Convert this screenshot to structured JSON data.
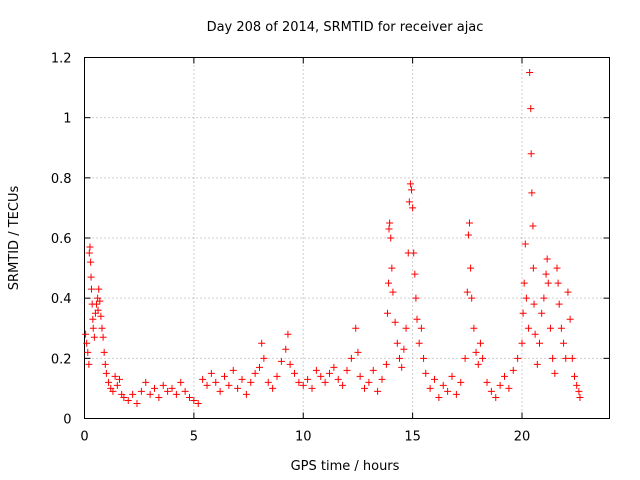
{
  "chart_data": {
    "type": "scatter",
    "title": "Day 208 of 2014, SRMTID for receiver ajac",
    "xlabel": "GPS time / hours",
    "ylabel": "SRMTID / TECUs",
    "xlim": [
      0,
      24
    ],
    "ylim": [
      0,
      1.2
    ],
    "xticks": [
      0,
      5,
      10,
      15,
      20
    ],
    "yticks": [
      0,
      0.2,
      0.4,
      0.6,
      0.8,
      1,
      1.2
    ],
    "xtick_labels": [
      "0",
      "5",
      "10",
      "15",
      "20"
    ],
    "ytick_labels": [
      "0",
      "0.2",
      "0.4",
      "0.6",
      "0.8",
      "1",
      "1.2"
    ],
    "grid": true,
    "marker": "+",
    "series": [
      {
        "name": "SRMTID",
        "color": "#ff0000",
        "points": [
          [
            0.05,
            0.28
          ],
          [
            0.1,
            0.25
          ],
          [
            0.15,
            0.22
          ],
          [
            0.2,
            0.18
          ],
          [
            0.22,
            0.55
          ],
          [
            0.25,
            0.57
          ],
          [
            0.28,
            0.52
          ],
          [
            0.3,
            0.47
          ],
          [
            0.32,
            0.43
          ],
          [
            0.35,
            0.38
          ],
          [
            0.38,
            0.33
          ],
          [
            0.4,
            0.3
          ],
          [
            0.45,
            0.27
          ],
          [
            0.5,
            0.35
          ],
          [
            0.55,
            0.38
          ],
          [
            0.6,
            0.4
          ],
          [
            0.62,
            0.36
          ],
          [
            0.65,
            0.43
          ],
          [
            0.7,
            0.39
          ],
          [
            0.75,
            0.34
          ],
          [
            0.8,
            0.3
          ],
          [
            0.85,
            0.27
          ],
          [
            0.9,
            0.22
          ],
          [
            0.95,
            0.18
          ],
          [
            1.0,
            0.15
          ],
          [
            1.1,
            0.12
          ],
          [
            1.2,
            0.1
          ],
          [
            1.3,
            0.09
          ],
          [
            1.4,
            0.14
          ],
          [
            1.5,
            0.11
          ],
          [
            1.6,
            0.13
          ],
          [
            1.7,
            0.08
          ],
          [
            1.8,
            0.07
          ],
          [
            2.0,
            0.06
          ],
          [
            2.2,
            0.08
          ],
          [
            2.4,
            0.05
          ],
          [
            2.6,
            0.09
          ],
          [
            2.8,
            0.12
          ],
          [
            3.0,
            0.08
          ],
          [
            3.2,
            0.1
          ],
          [
            3.4,
            0.07
          ],
          [
            3.6,
            0.11
          ],
          [
            3.8,
            0.09
          ],
          [
            4.0,
            0.1
          ],
          [
            4.2,
            0.08
          ],
          [
            4.4,
            0.12
          ],
          [
            4.6,
            0.09
          ],
          [
            4.8,
            0.07
          ],
          [
            5.0,
            0.06
          ],
          [
            5.2,
            0.05
          ],
          [
            5.4,
            0.13
          ],
          [
            5.6,
            0.11
          ],
          [
            5.8,
            0.15
          ],
          [
            6.0,
            0.12
          ],
          [
            6.2,
            0.09
          ],
          [
            6.4,
            0.14
          ],
          [
            6.6,
            0.11
          ],
          [
            6.8,
            0.16
          ],
          [
            7.0,
            0.1
          ],
          [
            7.2,
            0.13
          ],
          [
            7.4,
            0.08
          ],
          [
            7.6,
            0.12
          ],
          [
            7.8,
            0.15
          ],
          [
            8.0,
            0.17
          ],
          [
            8.1,
            0.25
          ],
          [
            8.2,
            0.2
          ],
          [
            8.4,
            0.12
          ],
          [
            8.6,
            0.1
          ],
          [
            8.8,
            0.14
          ],
          [
            9.0,
            0.19
          ],
          [
            9.2,
            0.23
          ],
          [
            9.3,
            0.28
          ],
          [
            9.4,
            0.18
          ],
          [
            9.6,
            0.15
          ],
          [
            9.8,
            0.12
          ],
          [
            10.0,
            0.11
          ],
          [
            10.2,
            0.13
          ],
          [
            10.4,
            0.1
          ],
          [
            10.6,
            0.16
          ],
          [
            10.8,
            0.14
          ],
          [
            11.0,
            0.12
          ],
          [
            11.2,
            0.15
          ],
          [
            11.4,
            0.17
          ],
          [
            11.6,
            0.13
          ],
          [
            11.8,
            0.11
          ],
          [
            12.0,
            0.16
          ],
          [
            12.2,
            0.2
          ],
          [
            12.4,
            0.3
          ],
          [
            12.5,
            0.22
          ],
          [
            12.6,
            0.14
          ],
          [
            12.8,
            0.1
          ],
          [
            13.0,
            0.12
          ],
          [
            13.2,
            0.16
          ],
          [
            13.4,
            0.09
          ],
          [
            13.6,
            0.13
          ],
          [
            13.8,
            0.18
          ],
          [
            13.85,
            0.35
          ],
          [
            13.9,
            0.45
          ],
          [
            13.92,
            0.63
          ],
          [
            13.95,
            0.65
          ],
          [
            14.0,
            0.6
          ],
          [
            14.05,
            0.5
          ],
          [
            14.1,
            0.42
          ],
          [
            14.2,
            0.32
          ],
          [
            14.3,
            0.25
          ],
          [
            14.4,
            0.2
          ],
          [
            14.5,
            0.17
          ],
          [
            14.6,
            0.23
          ],
          [
            14.7,
            0.3
          ],
          [
            14.8,
            0.55
          ],
          [
            14.85,
            0.72
          ],
          [
            14.9,
            0.78
          ],
          [
            14.95,
            0.76
          ],
          [
            15.0,
            0.7
          ],
          [
            15.05,
            0.55
          ],
          [
            15.1,
            0.48
          ],
          [
            15.15,
            0.4
          ],
          [
            15.2,
            0.33
          ],
          [
            15.3,
            0.25
          ],
          [
            15.4,
            0.3
          ],
          [
            15.5,
            0.2
          ],
          [
            15.6,
            0.15
          ],
          [
            15.8,
            0.1
          ],
          [
            16.0,
            0.13
          ],
          [
            16.2,
            0.07
          ],
          [
            16.4,
            0.11
          ],
          [
            16.6,
            0.09
          ],
          [
            16.8,
            0.14
          ],
          [
            17.0,
            0.08
          ],
          [
            17.2,
            0.12
          ],
          [
            17.4,
            0.2
          ],
          [
            17.5,
            0.42
          ],
          [
            17.55,
            0.61
          ],
          [
            17.6,
            0.65
          ],
          [
            17.65,
            0.5
          ],
          [
            17.7,
            0.4
          ],
          [
            17.8,
            0.3
          ],
          [
            17.9,
            0.22
          ],
          [
            18.0,
            0.18
          ],
          [
            18.1,
            0.25
          ],
          [
            18.2,
            0.2
          ],
          [
            18.4,
            0.12
          ],
          [
            18.6,
            0.09
          ],
          [
            18.8,
            0.07
          ],
          [
            19.0,
            0.11
          ],
          [
            19.2,
            0.14
          ],
          [
            19.4,
            0.1
          ],
          [
            19.6,
            0.16
          ],
          [
            19.8,
            0.2
          ],
          [
            20.0,
            0.25
          ],
          [
            20.05,
            0.35
          ],
          [
            20.1,
            0.45
          ],
          [
            20.15,
            0.58
          ],
          [
            20.2,
            0.4
          ],
          [
            20.3,
            0.3
          ],
          [
            20.35,
            1.15
          ],
          [
            20.4,
            1.03
          ],
          [
            20.42,
            0.88
          ],
          [
            20.45,
            0.75
          ],
          [
            20.5,
            0.64
          ],
          [
            20.52,
            0.5
          ],
          [
            20.55,
            0.38
          ],
          [
            20.6,
            0.28
          ],
          [
            20.7,
            0.18
          ],
          [
            20.8,
            0.25
          ],
          [
            20.9,
            0.35
          ],
          [
            21.0,
            0.4
          ],
          [
            21.1,
            0.48
          ],
          [
            21.15,
            0.53
          ],
          [
            21.2,
            0.45
          ],
          [
            21.3,
            0.3
          ],
          [
            21.4,
            0.2
          ],
          [
            21.5,
            0.15
          ],
          [
            21.6,
            0.5
          ],
          [
            21.65,
            0.45
          ],
          [
            21.7,
            0.38
          ],
          [
            21.8,
            0.3
          ],
          [
            21.9,
            0.25
          ],
          [
            22.0,
            0.2
          ],
          [
            22.1,
            0.42
          ],
          [
            22.2,
            0.33
          ],
          [
            22.3,
            0.2
          ],
          [
            22.4,
            0.14
          ],
          [
            22.5,
            0.11
          ],
          [
            22.6,
            0.09
          ],
          [
            22.65,
            0.07
          ]
        ]
      }
    ]
  }
}
